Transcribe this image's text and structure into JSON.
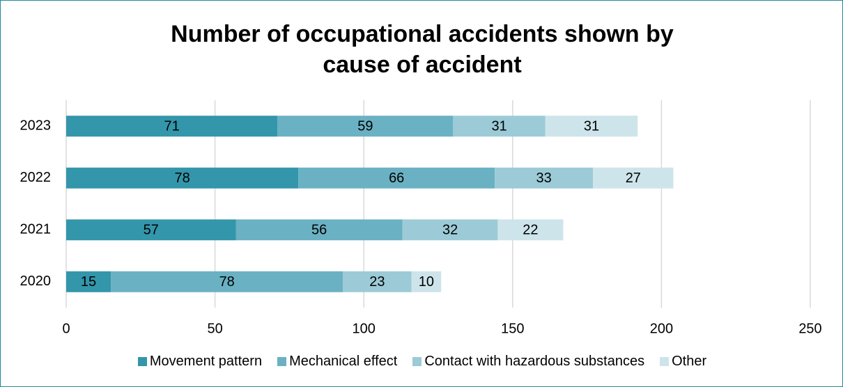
{
  "chart_data": {
    "type": "stacked-barh",
    "title": "Number of occupational accidents shown by cause of accident",
    "categories": [
      "2023",
      "2022",
      "2021",
      "2020"
    ],
    "series": [
      {
        "name": "Movement pattern",
        "color": "#3396ab",
        "values": [
          71,
          78,
          57,
          15
        ]
      },
      {
        "name": "Mechanical effect",
        "color": "#6ab1c3",
        "values": [
          59,
          66,
          56,
          78
        ]
      },
      {
        "name": "Contact with hazardous substances",
        "color": "#9ccbd7",
        "values": [
          31,
          33,
          32,
          23
        ]
      },
      {
        "name": "Other",
        "color": "#cde4ea",
        "values": [
          31,
          27,
          22,
          10
        ]
      }
    ],
    "xlim": [
      0,
      250
    ],
    "xticks": [
      0,
      50,
      100,
      150,
      200,
      250
    ],
    "grid": true,
    "legend": "bottom"
  }
}
